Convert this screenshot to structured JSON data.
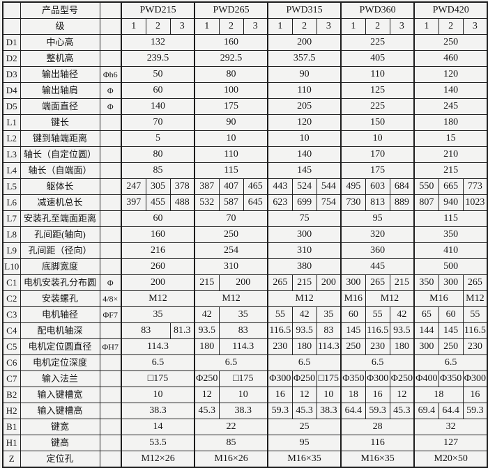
{
  "colors": {
    "page_bg": "#efefee",
    "cell_bg": "#f3f3f2",
    "border": "#1d1d1d",
    "text": "#161616"
  },
  "header": {
    "product_label": "产品型号",
    "stage_label": "级",
    "models": [
      "PWD215",
      "PWD265",
      "PWD315",
      "PWD360",
      "PWD420"
    ],
    "stages": [
      "1",
      "2",
      "3"
    ]
  },
  "rows": [
    {
      "code": "D1",
      "label": "中心高",
      "unit": "",
      "cells": [
        [
          "132",
          3
        ],
        [
          "160",
          3
        ],
        [
          "200",
          3
        ],
        [
          "225",
          3
        ],
        [
          "250",
          3
        ]
      ]
    },
    {
      "code": "D2",
      "label": "整机高",
      "unit": "",
      "cells": [
        [
          "239.5",
          3
        ],
        [
          "292.5",
          3
        ],
        [
          "357.5",
          3
        ],
        [
          "405",
          3
        ],
        [
          "460",
          3
        ]
      ]
    },
    {
      "code": "D3",
      "label": "输出轴径",
      "unit": "Φh6",
      "cells": [
        [
          "50",
          3
        ],
        [
          "80",
          3
        ],
        [
          "90",
          3
        ],
        [
          "110",
          3
        ],
        [
          "120",
          3
        ]
      ]
    },
    {
      "code": "D4",
      "label": "输出轴肩",
      "unit": "Φ",
      "cells": [
        [
          "60",
          3
        ],
        [
          "100",
          3
        ],
        [
          "110",
          3
        ],
        [
          "125",
          3
        ],
        [
          "140",
          3
        ]
      ]
    },
    {
      "code": "D5",
      "label": "端面直径",
      "unit": "Φ",
      "cells": [
        [
          "140",
          3
        ],
        [
          "175",
          3
        ],
        [
          "205",
          3
        ],
        [
          "225",
          3
        ],
        [
          "245",
          3
        ]
      ]
    },
    {
      "code": "L1",
      "label": "键长",
      "unit": "",
      "cells": [
        [
          "70",
          3
        ],
        [
          "90",
          3
        ],
        [
          "120",
          3
        ],
        [
          "150",
          3
        ],
        [
          "180",
          3
        ]
      ]
    },
    {
      "code": "L2",
      "label": "键到轴端距离",
      "unit": "",
      "cells": [
        [
          "5",
          3
        ],
        [
          "10",
          3
        ],
        [
          "10",
          3
        ],
        [
          "10",
          3
        ],
        [
          "15",
          3
        ]
      ]
    },
    {
      "code": "L3",
      "label": "轴长（自定位圆）",
      "unit": "",
      "cells": [
        [
          "80",
          3
        ],
        [
          "110",
          3
        ],
        [
          "140",
          3
        ],
        [
          "170",
          3
        ],
        [
          "210",
          3
        ]
      ]
    },
    {
      "code": "L4",
      "label": "轴长（自端面）",
      "unit": "",
      "cells": [
        [
          "85",
          3
        ],
        [
          "115",
          3
        ],
        [
          "145",
          3
        ],
        [
          "175",
          3
        ],
        [
          "215",
          3
        ]
      ]
    },
    {
      "code": "L5",
      "label": "躯体长",
      "unit": "",
      "cells": [
        [
          "247",
          1
        ],
        [
          "305",
          1
        ],
        [
          "378",
          1
        ],
        [
          "387",
          1
        ],
        [
          "407",
          1
        ],
        [
          "465",
          1
        ],
        [
          "443",
          1
        ],
        [
          "524",
          1
        ],
        [
          "544",
          1
        ],
        [
          "495",
          1
        ],
        [
          "603",
          1
        ],
        [
          "684",
          1
        ],
        [
          "550",
          1
        ],
        [
          "665",
          1
        ],
        [
          "773",
          1
        ]
      ]
    },
    {
      "code": "L6",
      "label": "减速机总长",
      "unit": "",
      "cells": [
        [
          "397",
          1
        ],
        [
          "455",
          1
        ],
        [
          "488",
          1
        ],
        [
          "532",
          1
        ],
        [
          "587",
          1
        ],
        [
          "645",
          1
        ],
        [
          "623",
          1
        ],
        [
          "699",
          1
        ],
        [
          "754",
          1
        ],
        [
          "730",
          1
        ],
        [
          "813",
          1
        ],
        [
          "889",
          1
        ],
        [
          "807",
          1
        ],
        [
          "940",
          1
        ],
        [
          "1023",
          1
        ]
      ]
    },
    {
      "code": "L7",
      "label": "安装孔至端面距离",
      "unit": "",
      "cells": [
        [
          "60",
          3
        ],
        [
          "70",
          3
        ],
        [
          "75",
          3
        ],
        [
          "95",
          3
        ],
        [
          "115",
          3
        ]
      ]
    },
    {
      "code": "L8",
      "label": "孔间距(轴向)",
      "unit": "",
      "cells": [
        [
          "160",
          3
        ],
        [
          "250",
          3
        ],
        [
          "300",
          3
        ],
        [
          "320",
          3
        ],
        [
          "350",
          3
        ]
      ]
    },
    {
      "code": "L9",
      "label": "孔间距（径向）",
      "unit": "",
      "cells": [
        [
          "216",
          3
        ],
        [
          "254",
          3
        ],
        [
          "310",
          3
        ],
        [
          "360",
          3
        ],
        [
          "410",
          3
        ]
      ]
    },
    {
      "code": "L10",
      "label": "底脚宽度",
      "unit": "",
      "cells": [
        [
          "260",
          3
        ],
        [
          "310",
          3
        ],
        [
          "380",
          3
        ],
        [
          "445",
          3
        ],
        [
          "500",
          3
        ]
      ]
    },
    {
      "code": "C1",
      "label": "电机安装孔分布圆",
      "unit": "Φ",
      "cells": [
        [
          "200",
          3
        ],
        [
          "215",
          1
        ],
        [
          "200",
          2
        ],
        [
          "265",
          1
        ],
        [
          "215",
          1
        ],
        [
          "200",
          1
        ],
        [
          "300",
          1
        ],
        [
          "265",
          1
        ],
        [
          "215",
          1
        ],
        [
          "350",
          1
        ],
        [
          "300",
          1
        ],
        [
          "265",
          1
        ]
      ]
    },
    {
      "code": "C2",
      "label": "安装螺孔",
      "unit": "4/8×",
      "cells": [
        [
          "M12",
          3
        ],
        [
          "M12",
          3
        ],
        [
          "M12",
          3
        ],
        [
          "M16",
          1
        ],
        [
          "M12",
          2
        ],
        [
          "M16",
          2
        ],
        [
          "M12",
          1
        ]
      ]
    },
    {
      "code": "C3",
      "label": "电机轴径",
      "unit": "ΦF7",
      "cells": [
        [
          "35",
          3
        ],
        [
          "42",
          1
        ],
        [
          "35",
          2
        ],
        [
          "55",
          1
        ],
        [
          "42",
          1
        ],
        [
          "35",
          1
        ],
        [
          "60",
          1
        ],
        [
          "55",
          1
        ],
        [
          "42",
          1
        ],
        [
          "65",
          1
        ],
        [
          "60",
          1
        ],
        [
          "55",
          1
        ]
      ]
    },
    {
      "code": "C4",
      "label": "配电机轴深",
      "unit": "",
      "cells": [
        [
          "83",
          2
        ],
        [
          "81.3",
          1
        ],
        [
          "93.5",
          1
        ],
        [
          "83",
          2
        ],
        [
          "116.5",
          1
        ],
        [
          "93.5",
          1
        ],
        [
          "83",
          1
        ],
        [
          "145",
          1
        ],
        [
          "116.5",
          1
        ],
        [
          "93.5",
          1
        ],
        [
          "144",
          1
        ],
        [
          "145",
          1
        ],
        [
          "116.5",
          1
        ]
      ]
    },
    {
      "code": "C5",
      "label": "电机定位圆直径",
      "unit": "ΦH7",
      "cells": [
        [
          "114.3",
          3
        ],
        [
          "180",
          1
        ],
        [
          "114.3",
          2
        ],
        [
          "230",
          1
        ],
        [
          "180",
          1
        ],
        [
          "114.3",
          1
        ],
        [
          "250",
          1
        ],
        [
          "230",
          1
        ],
        [
          "180",
          1
        ],
        [
          "300",
          1
        ],
        [
          "250",
          1
        ],
        [
          "230",
          1
        ]
      ]
    },
    {
      "code": "C6",
      "label": "电机定位深度",
      "unit": "",
      "cells": [
        [
          "6.5",
          3
        ],
        [
          "6.5",
          3
        ],
        [
          "6.5",
          3
        ],
        [
          "6.5",
          3
        ],
        [
          "6.5",
          3
        ]
      ]
    },
    {
      "code": "C7",
      "label": "输入法兰",
      "unit": "",
      "cells": [
        [
          "□175",
          3
        ],
        [
          "Φ250",
          1
        ],
        [
          "□175",
          2
        ],
        [
          "Φ300",
          1
        ],
        [
          "Φ250",
          1
        ],
        [
          "□175",
          1
        ],
        [
          "Φ350",
          1
        ],
        [
          "Φ300",
          1
        ],
        [
          "Φ250",
          1
        ],
        [
          "Φ400",
          1
        ],
        [
          "Φ350",
          1
        ],
        [
          "Φ300",
          1
        ]
      ]
    },
    {
      "code": "B2",
      "label": "输入键槽宽",
      "unit": "",
      "cells": [
        [
          "10",
          3
        ],
        [
          "12",
          1
        ],
        [
          "10",
          2
        ],
        [
          "16",
          1
        ],
        [
          "12",
          1
        ],
        [
          "10",
          1
        ],
        [
          "18",
          1
        ],
        [
          "16",
          1
        ],
        [
          "12",
          1
        ],
        [
          "18",
          2
        ],
        [
          "16",
          1
        ]
      ]
    },
    {
      "code": "H2",
      "label": "输入键槽高",
      "unit": "",
      "cells": [
        [
          "38.3",
          3
        ],
        [
          "45.3",
          1
        ],
        [
          "38.3",
          2
        ],
        [
          "59.3",
          1
        ],
        [
          "45.3",
          1
        ],
        [
          "38.3",
          1
        ],
        [
          "64.4",
          1
        ],
        [
          "59.3",
          1
        ],
        [
          "45.3",
          1
        ],
        [
          "69.4",
          1
        ],
        [
          "64.4",
          1
        ],
        [
          "59.3",
          1
        ]
      ]
    },
    {
      "code": "B1",
      "label": "键宽",
      "unit": "",
      "cells": [
        [
          "14",
          3
        ],
        [
          "22",
          3
        ],
        [
          "25",
          3
        ],
        [
          "28",
          3
        ],
        [
          "32",
          3
        ]
      ]
    },
    {
      "code": "H1",
      "label": "键高",
      "unit": "",
      "cells": [
        [
          "53.5",
          3
        ],
        [
          "85",
          3
        ],
        [
          "95",
          3
        ],
        [
          "116",
          3
        ],
        [
          "127",
          3
        ]
      ]
    },
    {
      "code": "Z",
      "label": "定位孔",
      "unit": "",
      "cells": [
        [
          "M12×26",
          3
        ],
        [
          "M16×26",
          3
        ],
        [
          "M16×35",
          3
        ],
        [
          "M16×35",
          3
        ],
        [
          "M20×50",
          3
        ]
      ]
    }
  ]
}
